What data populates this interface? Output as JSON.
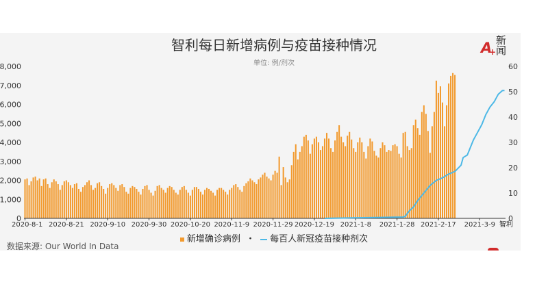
{
  "header": {
    "title": "智利每日新增病例与疫苗接种情况",
    "subtitle": "单位: 例/剂次"
  },
  "logo": {
    "mark": "A",
    "text_top": "新",
    "text_bottom": "闻",
    "red": "#d12b2b"
  },
  "legend": {
    "bar_label": "新增确诊病例",
    "separator": "・",
    "line_label": "每百人新冠疫苗接种剂次"
  },
  "source": "数据来源: Our World In Data",
  "colors": {
    "bars": "#f29a2e",
    "line": "#4cb8e6",
    "axis_text": "#333333",
    "background": "#f4f4f4"
  },
  "chart_data": {
    "type": "bar+line",
    "x_start": "2020-8-1",
    "x_end": "2021-3-21",
    "xticks": [
      "2020-8-1",
      "2020-8-21",
      "2020-9-10",
      "2020-9-30",
      "2020-10-20",
      "2020-11-9",
      "2020-11-29",
      "2020-12-19",
      "2021-1-8",
      "2021-1-28",
      "2021-2-17",
      "2021-3-9"
    ],
    "x_end_label": "智利",
    "yleft": {
      "ylim": [
        0,
        8000
      ],
      "ticks": [
        "0",
        "1,000",
        "2,000",
        "3,000",
        "4,000",
        "5,000",
        "6,000",
        "7,000",
        "8,000"
      ]
    },
    "yright": {
      "ylim": [
        0,
        60
      ],
      "ticks": [
        "0",
        "10",
        "20",
        "30",
        "40",
        "50",
        "60"
      ]
    },
    "series": [
      {
        "name": "新增确诊病例",
        "type": "bar",
        "axis": "left",
        "values": [
          2050,
          2100,
          1750,
          1950,
          2150,
          2200,
          2000,
          2100,
          1700,
          2050,
          2100,
          1800,
          1600,
          1900,
          2050,
          1950,
          1800,
          1500,
          1750,
          1950,
          2000,
          1900,
          1750,
          1600,
          1800,
          1850,
          1550,
          1400,
          1650,
          1750,
          1900,
          2000,
          1750,
          1500,
          1600,
          1850,
          1900,
          1700,
          1550,
          1300,
          1600,
          1800,
          1850,
          1750,
          1600,
          1450,
          1750,
          1800,
          1650,
          1400,
          1300,
          1600,
          1700,
          1650,
          1550,
          1400,
          1250,
          1550,
          1700,
          1750,
          1500,
          1350,
          1200,
          1450,
          1700,
          1750,
          1600,
          1500,
          1350,
          1600,
          1700,
          1650,
          1500,
          1350,
          1250,
          1500,
          1650,
          1700,
          1500,
          1350,
          1200,
          1500,
          1650,
          1650,
          1550,
          1400,
          1250,
          1500,
          1600,
          1550,
          1450,
          1350,
          1200,
          1500,
          1600,
          1600,
          1500,
          1400,
          1250,
          1500,
          1600,
          1750,
          1800,
          1650,
          1500,
          1400,
          1700,
          1850,
          1950,
          2100,
          2000,
          1900,
          1800,
          2050,
          2150,
          2300,
          2400,
          2200,
          2100,
          2000,
          2300,
          2500,
          2400,
          3250,
          1750,
          2700,
          2150,
          1900,
          2050,
          2800,
          3500,
          3900,
          3100,
          3500,
          3800,
          4300,
          4400,
          4100,
          3400,
          3900,
          4200,
          4300,
          4000,
          3600,
          3800,
          4200,
          4500,
          4200,
          3700,
          3500,
          4100,
          4550,
          4900,
          4300,
          4000,
          3800,
          4350,
          4550,
          4150,
          3700,
          3500,
          4000,
          4250,
          4000,
          3500,
          3150,
          3800,
          4200,
          4050,
          3550,
          3300,
          3200,
          3700,
          4000,
          3850,
          3500,
          3600,
          3550,
          3850,
          3900,
          3800,
          3400,
          3200,
          4500,
          4550,
          3800,
          3600,
          3700,
          4900,
          5200,
          4750,
          4400,
          5600,
          5950,
          5500,
          4600,
          3450,
          4850,
          5600,
          7250,
          6600,
          6950,
          6100,
          4850,
          5950,
          7100,
          7500,
          7650,
          7550
        ]
      },
      {
        "name": "每百人新冠疫苗接种剂次",
        "type": "line",
        "axis": "right",
        "points": [
          {
            "x": "2020-12-24",
            "y": 0
          },
          {
            "x": "2021-1-31",
            "y": 0.5
          },
          {
            "x": "2021-2-1",
            "y": 0.8
          },
          {
            "x": "2021-2-2",
            "y": 2.0
          },
          {
            "x": "2021-2-3",
            "y": 3.0
          },
          {
            "x": "2021-2-5",
            "y": 4.5
          },
          {
            "x": "2021-2-7",
            "y": 7.0
          },
          {
            "x": "2021-2-9",
            "y": 9.0
          },
          {
            "x": "2021-2-11",
            "y": 11.0
          },
          {
            "x": "2021-2-13",
            "y": 13.0
          },
          {
            "x": "2021-2-16",
            "y": 15.0
          },
          {
            "x": "2021-2-19",
            "y": 16.0
          },
          {
            "x": "2021-2-22",
            "y": 17.5
          },
          {
            "x": "2021-2-25",
            "y": 18.5
          },
          {
            "x": "2021-2-28",
            "y": 21.0
          },
          {
            "x": "2021-3-1",
            "y": 24.0
          },
          {
            "x": "2021-3-3",
            "y": 25.0
          },
          {
            "x": "2021-3-6",
            "y": 31.0
          },
          {
            "x": "2021-3-8",
            "y": 34.0
          },
          {
            "x": "2021-3-10",
            "y": 37.0
          },
          {
            "x": "2021-3-12",
            "y": 41.0
          },
          {
            "x": "2021-3-14",
            "y": 44.0
          },
          {
            "x": "2021-3-16",
            "y": 46.0
          },
          {
            "x": "2021-3-18",
            "y": 49.0
          },
          {
            "x": "2021-3-20",
            "y": 50.5
          },
          {
            "x": "2021-3-21",
            "y": 50.5
          }
        ]
      }
    ],
    "grid": false
  }
}
